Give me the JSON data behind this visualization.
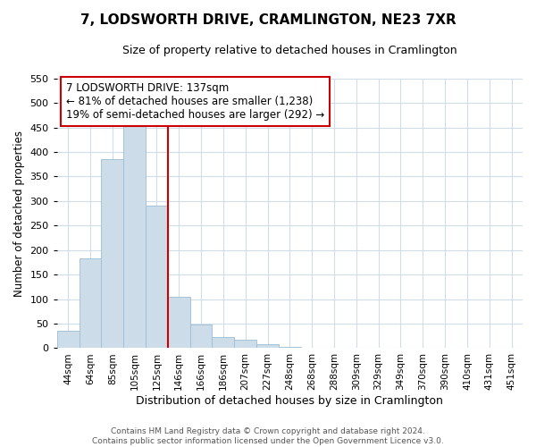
{
  "title": "7, LODSWORTH DRIVE, CRAMLINGTON, NE23 7XR",
  "subtitle": "Size of property relative to detached houses in Cramlington",
  "xlabel": "Distribution of detached houses by size in Cramlington",
  "ylabel": "Number of detached properties",
  "footer_lines": [
    "Contains HM Land Registry data © Crown copyright and database right 2024.",
    "Contains public sector information licensed under the Open Government Licence v3.0."
  ],
  "bin_labels": [
    "44sqm",
    "64sqm",
    "85sqm",
    "105sqm",
    "125sqm",
    "146sqm",
    "166sqm",
    "186sqm",
    "207sqm",
    "227sqm",
    "248sqm",
    "268sqm",
    "288sqm",
    "309sqm",
    "329sqm",
    "349sqm",
    "370sqm",
    "390sqm",
    "410sqm",
    "431sqm",
    "451sqm"
  ],
  "bar_values": [
    35,
    183,
    385,
    457,
    290,
    105,
    48,
    22,
    18,
    8,
    2,
    1,
    0,
    0,
    0,
    1,
    0,
    0,
    0,
    0,
    1
  ],
  "bar_color": "#ccdce8",
  "bar_edge_color": "#9bbdd4",
  "vline_x_idx": 5,
  "vline_color": "#cc0000",
  "ylim": [
    0,
    550
  ],
  "yticks": [
    0,
    50,
    100,
    150,
    200,
    250,
    300,
    350,
    400,
    450,
    500,
    550
  ],
  "annotation_title": "7 LODSWORTH DRIVE: 137sqm",
  "annotation_line2": "← 81% of detached houses are smaller (1,238)",
  "annotation_line3": "19% of semi-detached houses are larger (292) →",
  "annotation_box_facecolor": "#ffffff",
  "annotation_box_edgecolor": "#cc0000",
  "plot_bg_color": "#ffffff",
  "fig_bg_color": "#ffffff",
  "grid_color": "#d0dce8",
  "title_fontsize": 11,
  "subtitle_fontsize": 9
}
